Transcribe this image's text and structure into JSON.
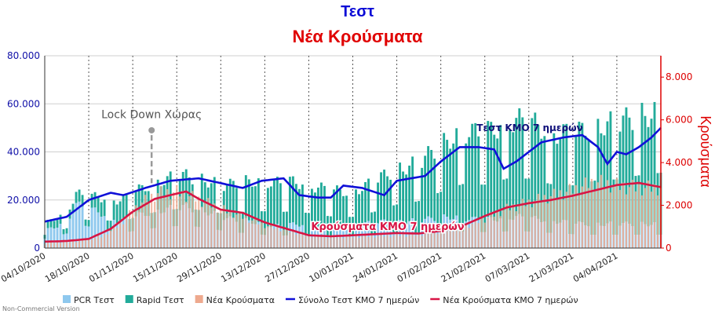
{
  "title": "Τεστ",
  "subtitle": "Νέα Κρούσματα",
  "watermark": "Non-Commercial Version",
  "annotations": {
    "lockdown": "Lock Down Χώρας",
    "tests_line": "Τεστ ΚΜΟ 7 ημερών",
    "cases_line": "Κρούσματα ΚΜΟ 7 ημερών"
  },
  "colors": {
    "pcr": "#8ec8ee",
    "rapid": "#22ab9a",
    "cases": "#eea98e",
    "tests_ma": "#1010d8",
    "cases_ma": "#d81545",
    "left_axis": "#1010a8",
    "right_axis": "#dd0000"
  },
  "chart_data": {
    "type": "bar",
    "x_start": "2020-10-04",
    "x_end": "2021-04-18",
    "y_left": {
      "label": "",
      "range": [
        0,
        80000
      ],
      "ticks": [
        "0",
        "20.000",
        "40.000",
        "60.000",
        "80.000"
      ]
    },
    "y_right": {
      "label": "Κρούσματα",
      "range": [
        0,
        9000
      ],
      "ticks": [
        "0",
        "2.000",
        "4.000",
        "6.000",
        "8.000"
      ]
    },
    "x_ticks": [
      "04/10/2020",
      "18/10/2020",
      "01/11/2020",
      "15/11/2020",
      "29/11/2020",
      "13/12/2020",
      "27/12/2020",
      "10/01/2021",
      "24/01/2021",
      "07/02/2021",
      "21/02/2021",
      "07/03/2021",
      "21/03/2021",
      "04/04/2021"
    ],
    "legend_position": "bottom",
    "series": [
      {
        "name": "PCR Τεστ",
        "type": "bar",
        "axis": "left",
        "keyframes": [
          [
            0,
            7000
          ],
          [
            7,
            11000
          ],
          [
            10,
            18000
          ],
          [
            17,
            15000
          ],
          [
            24,
            11000
          ],
          [
            31,
            14000
          ],
          [
            38,
            16000
          ],
          [
            45,
            17000
          ],
          [
            52,
            15000
          ],
          [
            59,
            12000
          ],
          [
            66,
            11000
          ],
          [
            73,
            9000
          ],
          [
            80,
            10000
          ],
          [
            87,
            9000
          ],
          [
            94,
            9000
          ],
          [
            101,
            10000
          ],
          [
            108,
            11000
          ],
          [
            115,
            11000
          ],
          [
            122,
            12000
          ],
          [
            129,
            13000
          ],
          [
            136,
            12000
          ],
          [
            143,
            12000
          ],
          [
            150,
            13000
          ],
          [
            157,
            12000
          ],
          [
            164,
            11000
          ],
          [
            171,
            10000
          ],
          [
            178,
            10000
          ],
          [
            190,
            10000
          ],
          [
            196,
            10000
          ]
        ]
      },
      {
        "name": "Rapid Τεστ",
        "type": "bar",
        "axis": "left",
        "keyframes": [
          [
            0,
            3000
          ],
          [
            7,
            4000
          ],
          [
            14,
            5000
          ],
          [
            21,
            8000
          ],
          [
            28,
            10000
          ],
          [
            35,
            12000
          ],
          [
            42,
            13000
          ],
          [
            49,
            13000
          ],
          [
            56,
            13000
          ],
          [
            63,
            16000
          ],
          [
            70,
            18000
          ],
          [
            77,
            18000
          ],
          [
            84,
            17000
          ],
          [
            91,
            15000
          ],
          [
            98,
            14000
          ],
          [
            105,
            17000
          ],
          [
            112,
            22000
          ],
          [
            119,
            24000
          ],
          [
            126,
            30000
          ],
          [
            133,
            36000
          ],
          [
            140,
            36000
          ],
          [
            147,
            40000
          ],
          [
            154,
            40000
          ],
          [
            161,
            37000
          ],
          [
            168,
            37000
          ],
          [
            175,
            41000
          ],
          [
            182,
            42000
          ],
          [
            189,
            45000
          ],
          [
            196,
            47000
          ]
        ]
      },
      {
        "name": "Νέα Κρούσματα",
        "type": "bar",
        "axis": "right",
        "keyframes": [
          [
            0,
            250
          ],
          [
            10,
            330
          ],
          [
            18,
            550
          ],
          [
            24,
            1150
          ],
          [
            30,
            2100
          ],
          [
            36,
            2650
          ],
          [
            42,
            2700
          ],
          [
            48,
            2400
          ],
          [
            56,
            1900
          ],
          [
            64,
            1450
          ],
          [
            70,
            1100
          ],
          [
            77,
            850
          ],
          [
            84,
            600
          ],
          [
            91,
            550
          ],
          [
            98,
            550
          ],
          [
            105,
            580
          ],
          [
            112,
            600
          ],
          [
            119,
            650
          ],
          [
            126,
            820
          ],
          [
            133,
            1000
          ],
          [
            140,
            1400
          ],
          [
            147,
            1900
          ],
          [
            154,
            2200
          ],
          [
            161,
            2500
          ],
          [
            168,
            2800
          ],
          [
            175,
            3200
          ],
          [
            182,
            3000
          ],
          [
            189,
            2900
          ],
          [
            196,
            2900
          ]
        ]
      },
      {
        "name": "Σύνολο Τεστ ΚΜΟ 7 ημερών",
        "type": "line",
        "axis": "left",
        "keyframes": [
          [
            0,
            11000
          ],
          [
            7,
            13000
          ],
          [
            14,
            20000
          ],
          [
            21,
            23000
          ],
          [
            25,
            22000
          ],
          [
            32,
            25000
          ],
          [
            40,
            28000
          ],
          [
            49,
            29000
          ],
          [
            56,
            27000
          ],
          [
            63,
            25000
          ],
          [
            69,
            28000
          ],
          [
            76,
            29000
          ],
          [
            81,
            22000
          ],
          [
            87,
            21000
          ],
          [
            91,
            21000
          ],
          [
            95,
            26000
          ],
          [
            101,
            25000
          ],
          [
            108,
            22000
          ],
          [
            112,
            28000
          ],
          [
            121,
            30000
          ],
          [
            126,
            36000
          ],
          [
            132,
            42000
          ],
          [
            138,
            42000
          ],
          [
            143,
            41000
          ],
          [
            146,
            33000
          ],
          [
            150,
            36000
          ],
          [
            158,
            44000
          ],
          [
            165,
            46000
          ],
          [
            171,
            47000
          ],
          [
            176,
            42000
          ],
          [
            179,
            35000
          ],
          [
            182,
            40000
          ],
          [
            185,
            39000
          ],
          [
            189,
            42000
          ],
          [
            193,
            46000
          ],
          [
            196,
            50000
          ]
        ]
      },
      {
        "name": "Νέα Κρούσματα ΚΜΟ 7 ημερών",
        "type": "line",
        "axis": "right",
        "keyframes": [
          [
            0,
            300
          ],
          [
            7,
            330
          ],
          [
            14,
            430
          ],
          [
            21,
            900
          ],
          [
            28,
            1700
          ],
          [
            35,
            2300
          ],
          [
            42,
            2550
          ],
          [
            45,
            2650
          ],
          [
            49,
            2300
          ],
          [
            56,
            1800
          ],
          [
            63,
            1650
          ],
          [
            70,
            1200
          ],
          [
            77,
            900
          ],
          [
            84,
            600
          ],
          [
            91,
            550
          ],
          [
            98,
            600
          ],
          [
            105,
            650
          ],
          [
            112,
            700
          ],
          [
            119,
            680
          ],
          [
            126,
            800
          ],
          [
            133,
            1050
          ],
          [
            140,
            1500
          ],
          [
            147,
            1900
          ],
          [
            154,
            2100
          ],
          [
            161,
            2250
          ],
          [
            168,
            2450
          ],
          [
            175,
            2700
          ],
          [
            182,
            2950
          ],
          [
            189,
            3050
          ],
          [
            196,
            2850
          ]
        ]
      }
    ]
  },
  "legend": [
    {
      "label": "PCR Τεστ",
      "key": "pcr",
      "shape": "square"
    },
    {
      "label": "Rapid Τεστ",
      "key": "rapid",
      "shape": "square"
    },
    {
      "label": "Νέα Κρούσματα",
      "key": "cases",
      "shape": "square"
    },
    {
      "label": "Σύνολο Τεστ ΚΜΟ 7 ημερών",
      "key": "tests_ma",
      "shape": "line"
    },
    {
      "label": "Νέα Κρούσματα ΚΜΟ 7 ημερών",
      "key": "cases_ma",
      "shape": "line"
    }
  ]
}
